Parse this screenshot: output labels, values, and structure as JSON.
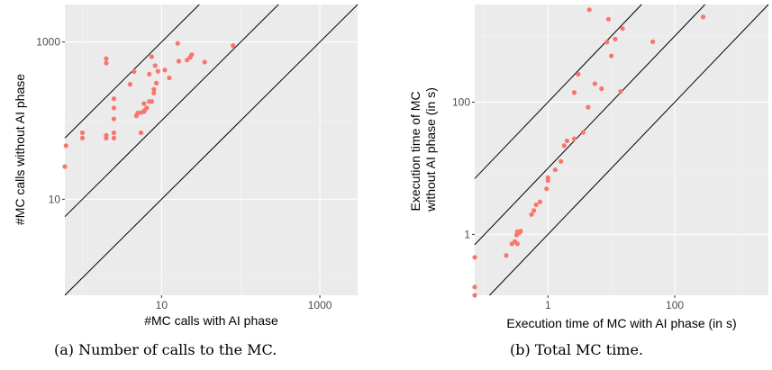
{
  "colors": {
    "panel": "#ebebeb",
    "grid_major": "#ffffff",
    "grid_minor": "#f5f5f5",
    "point": "#f8766d",
    "line": "#000000"
  },
  "chart_data": [
    {
      "type": "scatter",
      "caption": "(a) Number of calls to the MC.",
      "xlabel": "#MC calls with AI phase",
      "ylabel": "#MC calls without AI phase",
      "xscale": "log10",
      "yscale": "log10",
      "xlim": [
        0.6,
        3000
      ],
      "ylim": [
        0.6,
        3000
      ],
      "xticks": [
        10,
        1000
      ],
      "xtick_labels": [
        "10",
        "1000"
      ],
      "yticks": [
        10,
        1000
      ],
      "ytick_labels": [
        "10",
        "1000"
      ],
      "grid": true,
      "reference_lines": [
        {
          "slope": 1,
          "offset_factor": 1
        },
        {
          "slope": 1,
          "offset_factor": 10
        },
        {
          "slope": 1,
          "offset_factor": 100
        }
      ],
      "points": [
        [
          0.6,
          26
        ],
        [
          0.62,
          48
        ],
        [
          1.0,
          60
        ],
        [
          1.0,
          70
        ],
        [
          2.0,
          60
        ],
        [
          2.0,
          65
        ],
        [
          2.0,
          540
        ],
        [
          2.0,
          615
        ],
        [
          2.5,
          60
        ],
        [
          2.5,
          70
        ],
        [
          2.5,
          105
        ],
        [
          2.5,
          145
        ],
        [
          2.5,
          190
        ],
        [
          4.0,
          290
        ],
        [
          4.5,
          420
        ],
        [
          4.8,
          115
        ],
        [
          5.0,
          125
        ],
        [
          5.5,
          70
        ],
        [
          5.5,
          127
        ],
        [
          6.0,
          130
        ],
        [
          6.0,
          165
        ],
        [
          6.1,
          135
        ],
        [
          6.5,
          145
        ],
        [
          7.0,
          175
        ],
        [
          7.5,
          175
        ],
        [
          7.0,
          390
        ],
        [
          7.5,
          650
        ],
        [
          8.0,
          225
        ],
        [
          8.0,
          250
        ],
        [
          8.3,
          500
        ],
        [
          8.6,
          300
        ],
        [
          9.0,
          425
        ],
        [
          11.0,
          440
        ],
        [
          12.5,
          350
        ],
        [
          16.0,
          960
        ],
        [
          16.5,
          570
        ],
        [
          21.0,
          590
        ],
        [
          23.0,
          640
        ],
        [
          24.0,
          690
        ],
        [
          35.0,
          555
        ],
        [
          80.0,
          900
        ]
      ]
    },
    {
      "type": "scatter",
      "caption": "(b) Total MC time.",
      "xlabel": "Execution time of MC with AI phase (in s)",
      "ylabel": "Execution time of MC without AI phase (in s)",
      "ylabel_lines": [
        "Execution time of MC",
        "without AI phase (in s)"
      ],
      "xscale": "log10",
      "yscale": "log10",
      "xlim": [
        0.07,
        3000
      ],
      "ylim": [
        0.12,
        3000
      ],
      "xticks": [
        1,
        100
      ],
      "xtick_labels": [
        "1",
        "100"
      ],
      "yticks": [
        1,
        100
      ],
      "ytick_labels": [
        "1",
        "100"
      ],
      "grid": true,
      "reference_lines": [
        {
          "slope": 1,
          "offset_factor": 1
        },
        {
          "slope": 1,
          "offset_factor": 10
        },
        {
          "slope": 1,
          "offset_factor": 100
        }
      ],
      "points": [
        [
          0.07,
          0.45
        ],
        [
          0.07,
          0.16
        ],
        [
          0.07,
          0.12
        ],
        [
          0.22,
          0.48
        ],
        [
          0.27,
          0.72
        ],
        [
          0.3,
          0.78
        ],
        [
          0.32,
          0.98
        ],
        [
          0.33,
          1.1
        ],
        [
          0.33,
          0.72
        ],
        [
          0.35,
          1.05
        ],
        [
          0.37,
          1.12
        ],
        [
          0.55,
          2.0
        ],
        [
          0.6,
          2.3
        ],
        [
          0.65,
          2.8
        ],
        [
          0.75,
          3.1
        ],
        [
          0.95,
          4.9
        ],
        [
          1.0,
          6.5
        ],
        [
          1.0,
          7.2
        ],
        [
          1.3,
          9.5
        ],
        [
          1.6,
          12.7
        ],
        [
          1.8,
          22.0
        ],
        [
          2.0,
          26.0
        ],
        [
          2.6,
          28.0
        ],
        [
          2.6,
          140
        ],
        [
          3.0,
          265
        ],
        [
          3.6,
          35.0
        ],
        [
          4.3,
          84.0
        ],
        [
          4.5,
          2500
        ],
        [
          5.5,
          190
        ],
        [
          7.0,
          160
        ],
        [
          8.5,
          810
        ],
        [
          9.0,
          1800
        ],
        [
          10.0,
          500
        ],
        [
          11.5,
          900
        ],
        [
          14.0,
          145
        ],
        [
          15.0,
          1300
        ],
        [
          45.0,
          820
        ],
        [
          280.0,
          1950
        ]
      ]
    }
  ]
}
